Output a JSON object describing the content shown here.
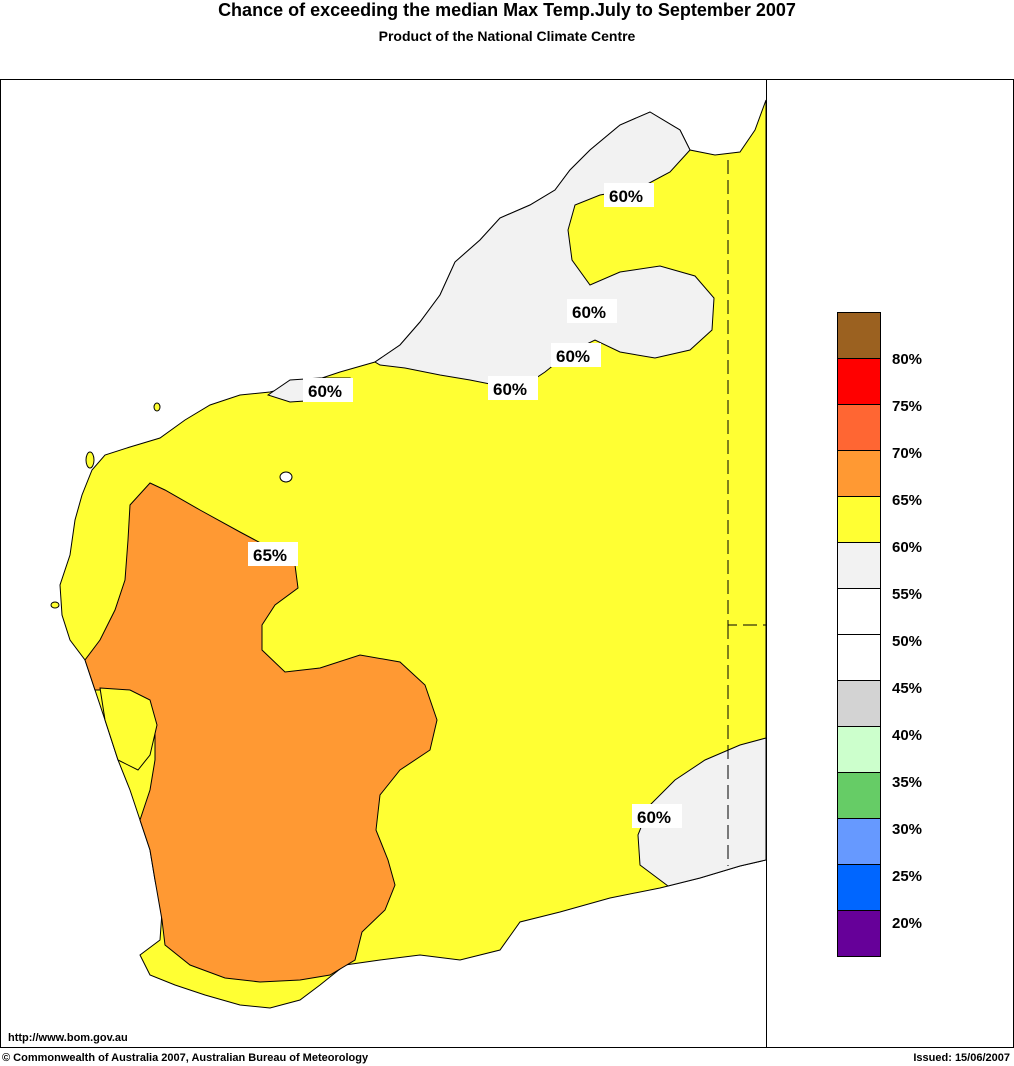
{
  "title": "Chance of exceeding the median Max Temp.July to September 2007",
  "subtitle": "Product of the National Climate Centre",
  "map": {
    "region": "Western Australia",
    "contour_labels": [
      "60%",
      "60%",
      "60%",
      "60%",
      "60%",
      "65%",
      "60%"
    ]
  },
  "legend": {
    "bins": [
      {
        "color": "#9b6120"
      },
      {
        "color": "#ff0000"
      },
      {
        "color": "#ff6633"
      },
      {
        "color": "#ff9933"
      },
      {
        "color": "#ffff33"
      },
      {
        "color": "#f2f2f2"
      },
      {
        "color": "#ffffff"
      },
      {
        "color": "#ffffff"
      },
      {
        "color": "#d3d3d3"
      },
      {
        "color": "#ccffcc"
      },
      {
        "color": "#66cc66"
      },
      {
        "color": "#6699ff"
      },
      {
        "color": "#0066ff"
      },
      {
        "color": "#660099"
      }
    ],
    "ticks": [
      "80%",
      "75%",
      "70%",
      "65%",
      "60%",
      "55%",
      "50%",
      "45%",
      "40%",
      "35%",
      "30%",
      "25%",
      "20%"
    ]
  },
  "footer": {
    "url": "http://www.bom.gov.au",
    "copyright": "© Commonwealth of Australia 2007, Australian Bureau of Meteorology",
    "issued": "Issued: 15/06/2007"
  }
}
